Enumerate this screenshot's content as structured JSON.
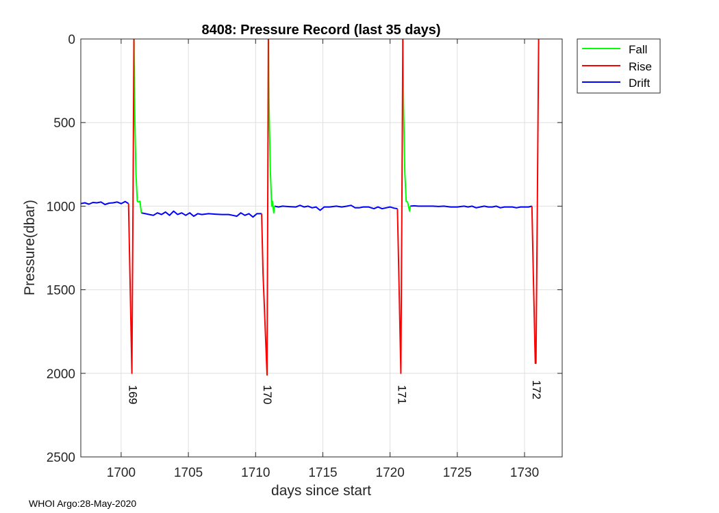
{
  "chart_data": {
    "type": "line",
    "title": "8408: Pressure Record (last 35 days)",
    "xlabel": "days since start",
    "ylabel": "Pressure(dbar)",
    "xlim": [
      1697,
      1732.8
    ],
    "ylim": [
      0,
      2500
    ],
    "y_reversed": true,
    "grid": true,
    "xticks": [
      1700,
      1705,
      1710,
      1715,
      1720,
      1725,
      1730
    ],
    "yticks": [
      0,
      500,
      1000,
      1500,
      2000,
      2500
    ],
    "legend_position": "outside-top-right",
    "legend": [
      "Fall",
      "Rise",
      "Drift"
    ],
    "series": [
      {
        "name": "Fall",
        "color": "#00ff00",
        "segments": [
          [
            [
              1700.95,
              0
            ],
            [
              1701.0,
              400
            ],
            [
              1701.1,
              800
            ],
            [
              1701.2,
              970
            ],
            [
              1701.3,
              975
            ],
            [
              1701.4,
              970
            ],
            [
              1701.5,
              1040
            ]
          ],
          [
            [
              1710.95,
              0
            ],
            [
              1711.0,
              400
            ],
            [
              1711.1,
              800
            ],
            [
              1711.2,
              1000
            ],
            [
              1711.25,
              970
            ],
            [
              1711.35,
              1040
            ],
            [
              1711.4,
              1000
            ]
          ],
          [
            [
              1720.95,
              0
            ],
            [
              1721.0,
              400
            ],
            [
              1721.1,
              800
            ],
            [
              1721.2,
              970
            ],
            [
              1721.3,
              975
            ],
            [
              1721.45,
              1030
            ],
            [
              1721.5,
              1000
            ]
          ]
        ]
      },
      {
        "name": "Rise",
        "color": "#ff0000",
        "segments": [
          [
            [
              1700.55,
              985
            ],
            [
              1700.65,
              1400
            ],
            [
              1700.8,
              2000
            ],
            [
              1700.88,
              1000
            ],
            [
              1700.95,
              0
            ]
          ],
          [
            [
              1710.45,
              1045
            ],
            [
              1710.55,
              1400
            ],
            [
              1710.85,
              2010
            ],
            [
              1710.9,
              1000
            ],
            [
              1710.95,
              0
            ]
          ],
          [
            [
              1720.55,
              1015
            ],
            [
              1720.65,
              1400
            ],
            [
              1720.8,
              2000
            ],
            [
              1720.88,
              1000
            ],
            [
              1720.95,
              0
            ]
          ],
          [
            [
              1730.55,
              1000
            ],
            [
              1730.65,
              1400
            ],
            [
              1730.8,
              1940
            ],
            [
              1730.85,
              1940
            ],
            [
              1730.95,
              1000
            ],
            [
              1731.05,
              0
            ]
          ]
        ]
      },
      {
        "name": "Drift",
        "color": "#0000ff",
        "segments": [
          [
            [
              1697.0,
              985
            ],
            [
              1697.3,
              980
            ],
            [
              1697.6,
              988
            ],
            [
              1697.9,
              978
            ],
            [
              1698.2,
              980
            ],
            [
              1698.5,
              975
            ],
            [
              1698.8,
              990
            ],
            [
              1699.1,
              982
            ],
            [
              1699.4,
              980
            ],
            [
              1699.7,
              975
            ],
            [
              1700.0,
              985
            ],
            [
              1700.3,
              972
            ],
            [
              1700.55,
              985
            ]
          ],
          [
            [
              1701.5,
              1040
            ],
            [
              1701.8,
              1045
            ],
            [
              1702.1,
              1050
            ],
            [
              1702.4,
              1055
            ],
            [
              1702.7,
              1040
            ],
            [
              1703.0,
              1050
            ],
            [
              1703.3,
              1035
            ],
            [
              1703.6,
              1055
            ],
            [
              1703.9,
              1030
            ],
            [
              1704.2,
              1050
            ],
            [
              1704.5,
              1040
            ],
            [
              1704.8,
              1055
            ],
            [
              1705.1,
              1040
            ],
            [
              1705.4,
              1060
            ],
            [
              1705.7,
              1045
            ],
            [
              1706.0,
              1050
            ],
            [
              1706.5,
              1045
            ],
            [
              1707.0,
              1048
            ],
            [
              1707.5,
              1050
            ],
            [
              1708.0,
              1050
            ],
            [
              1708.3,
              1055
            ],
            [
              1708.6,
              1060
            ],
            [
              1708.9,
              1040
            ],
            [
              1709.2,
              1055
            ],
            [
              1709.5,
              1045
            ],
            [
              1709.8,
              1065
            ],
            [
              1710.1,
              1045
            ],
            [
              1710.45,
              1045
            ]
          ],
          [
            [
              1711.4,
              1000
            ],
            [
              1711.7,
              1005
            ],
            [
              1712.0,
              1000
            ],
            [
              1712.5,
              1003
            ],
            [
              1713.0,
              1005
            ],
            [
              1713.3,
              995
            ],
            [
              1713.6,
              1005
            ],
            [
              1713.9,
              1000
            ],
            [
              1714.2,
              1010
            ],
            [
              1714.5,
              1005
            ],
            [
              1714.8,
              1025
            ],
            [
              1715.1,
              1005
            ],
            [
              1715.5,
              1005
            ],
            [
              1716.0,
              1000
            ],
            [
              1716.4,
              1005
            ],
            [
              1716.8,
              1000
            ],
            [
              1717.1,
              995
            ],
            [
              1717.4,
              1010
            ],
            [
              1717.7,
              1010
            ],
            [
              1718.0,
              1005
            ],
            [
              1718.4,
              1005
            ],
            [
              1718.8,
              1015
            ],
            [
              1719.1,
              1005
            ],
            [
              1719.4,
              1015
            ],
            [
              1719.7,
              1010
            ],
            [
              1720.0,
              1005
            ],
            [
              1720.3,
              1012
            ],
            [
              1720.55,
              1015
            ]
          ],
          [
            [
              1721.5,
              1000
            ],
            [
              1721.8,
              998
            ],
            [
              1722.1,
              1000
            ],
            [
              1722.5,
              1000
            ],
            [
              1722.8,
              1000
            ],
            [
              1723.2,
              1000
            ],
            [
              1723.6,
              1002
            ],
            [
              1724.0,
              1000
            ],
            [
              1724.5,
              1005
            ],
            [
              1725.0,
              1005
            ],
            [
              1725.5,
              1000
            ],
            [
              1725.8,
              1005
            ],
            [
              1726.1,
              1000
            ],
            [
              1726.4,
              1010
            ],
            [
              1726.7,
              1005
            ],
            [
              1727.0,
              1000
            ],
            [
              1727.3,
              1005
            ],
            [
              1727.6,
              1005
            ],
            [
              1727.9,
              1000
            ],
            [
              1728.2,
              1010
            ],
            [
              1728.5,
              1005
            ],
            [
              1728.8,
              1005
            ],
            [
              1729.1,
              1005
            ],
            [
              1729.4,
              1010
            ],
            [
              1729.7,
              1005
            ],
            [
              1730.0,
              1005
            ],
            [
              1730.3,
              1005
            ],
            [
              1730.55,
              1000
            ]
          ]
        ]
      }
    ],
    "annotations": [
      {
        "text": "169",
        "x": 1700.6,
        "y": 2070
      },
      {
        "text": "170",
        "x": 1710.6,
        "y": 2070
      },
      {
        "text": "171",
        "x": 1720.6,
        "y": 2070
      },
      {
        "text": "172",
        "x": 1730.6,
        "y": 2040
      }
    ]
  },
  "footer": "WHOI Argo:28-May-2020"
}
